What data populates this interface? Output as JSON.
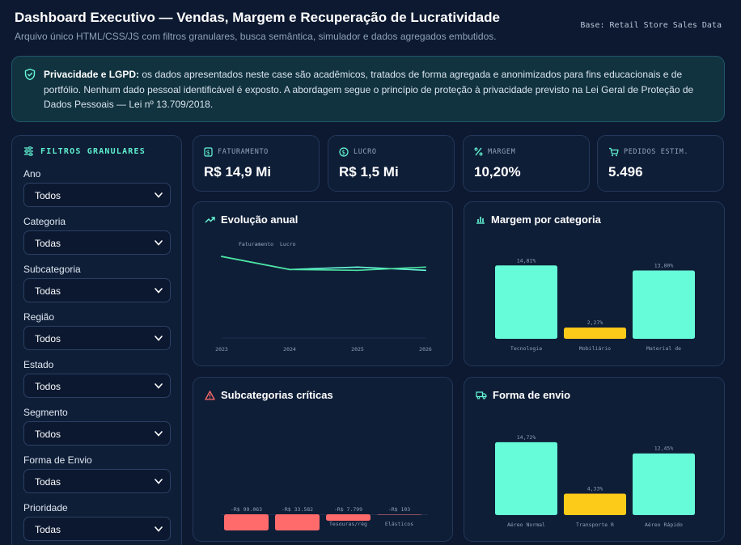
{
  "header": {
    "title": "Dashboard Executivo — Vendas, Margem e Recuperação de Lucratividade",
    "subtitle": "Arquivo único HTML/CSS/JS com filtros granulares, busca semântica, simulador e dados agregados embutidos.",
    "base_tag": "Base: Retail Store Sales Data"
  },
  "privacy": {
    "icon": "shield-check-icon",
    "bold": "Privacidade e LGPD:",
    "text": " os dados apresentados neste case são acadêmicos, tratados de forma agregada e anonimizados para fins educacionais e de portfólio. Nenhum dado pessoal identificável é exposto. A abordagem segue o princípio de proteção à privacidade previsto na Lei Geral de Proteção de Dados Pessoais — Lei nº 13.709/2018."
  },
  "filters": {
    "title": "FILTROS GRANULARES",
    "icon": "sliders-icon",
    "items": [
      {
        "label": "Ano",
        "value": "Todos"
      },
      {
        "label": "Categoria",
        "value": "Todas"
      },
      {
        "label": "Subcategoria",
        "value": "Todas"
      },
      {
        "label": "Região",
        "value": "Todos"
      },
      {
        "label": "Estado",
        "value": "Todos"
      },
      {
        "label": "Segmento",
        "value": "Todos"
      },
      {
        "label": "Forma de Envio",
        "value": "Todas"
      },
      {
        "label": "Prioridade",
        "value": "Todas"
      }
    ]
  },
  "kpis": [
    {
      "label": "FATURAMENTO",
      "value": "R$ 14,9 Mi",
      "icon": "receipt-icon"
    },
    {
      "label": "LUCRO",
      "value": "R$ 1,5 Mi",
      "icon": "dollar-circle-icon"
    },
    {
      "label": "MARGEM",
      "value": "10,20%",
      "icon": "percent-icon"
    },
    {
      "label": "PEDIDOS ESTIM.",
      "value": "5.496",
      "icon": "cart-icon"
    }
  ],
  "panels": {
    "evolucao": "Evolução anual",
    "margem_categoria": "Margem por categoria",
    "subcategorias": "Subcategorias críticas",
    "envio": "Forma de envio"
  },
  "colors": {
    "accent": "#66fcd9",
    "warning": "#fccb19",
    "danger": "#ff6b6b",
    "bg": "#0c1930",
    "panel": "#0f1e37"
  },
  "chart_data": [
    {
      "type": "line",
      "title": "Evolução anual",
      "x": [
        "2023",
        "2024",
        "2025",
        "2026"
      ],
      "series": [
        {
          "name": "Faturamento",
          "values": [
            100,
            84,
            87,
            83
          ],
          "color": "#66fcd9"
        },
        {
          "name": "Lucro",
          "values": [
            100,
            84,
            83,
            87
          ],
          "color": "#4be3a3"
        }
      ],
      "ylim": [
        0,
        120
      ]
    },
    {
      "type": "bar",
      "title": "Margem por categoria",
      "categories": [
        "Tecnologia",
        "Mobiliário",
        "Material de"
      ],
      "values": [
        14.81,
        2.27,
        13.8
      ],
      "labels": [
        "14,81%",
        "2,27%",
        "13,80%"
      ],
      "colors": [
        "#66fcd9",
        "#fccb19",
        "#66fcd9"
      ],
      "ylim": [
        0,
        16
      ]
    },
    {
      "type": "bar",
      "title": "Subcategorias críticas",
      "categories": [
        "",
        "",
        "Tesouras/rég",
        "Elásticos"
      ],
      "values": [
        -99063,
        -33582,
        -7799,
        -103
      ],
      "labels": [
        "-R$ 99.063",
        "-R$ 33.582",
        "-R$ 7.799",
        "-R$ 103"
      ],
      "colors": [
        "#ff6b6b",
        "#ff6b6b",
        "#ff6b6b",
        "#ff6b6b"
      ]
    },
    {
      "type": "bar",
      "title": "Forma de envio",
      "categories": [
        "Aéreo Normal",
        "Transporte R",
        "Aéreo Rápido"
      ],
      "values": [
        14.72,
        4.33,
        12.45
      ],
      "labels": [
        "14,72%",
        "4,33%",
        "12,45%"
      ],
      "colors": [
        "#66fcd9",
        "#fccb19",
        "#66fcd9"
      ],
      "ylim": [
        0,
        16
      ]
    }
  ]
}
